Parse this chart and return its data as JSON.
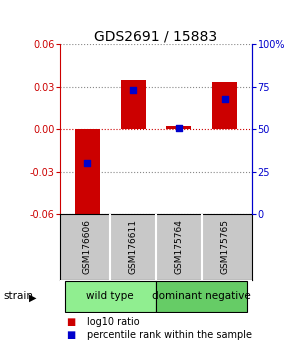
{
  "title": "GDS2691 / 15883",
  "samples": [
    "GSM176606",
    "GSM176611",
    "GSM175764",
    "GSM175765"
  ],
  "log10_ratios": [
    -0.062,
    0.035,
    0.002,
    0.033
  ],
  "percentile_ranks": [
    30,
    73,
    51,
    68
  ],
  "ylim_left": [
    -0.06,
    0.06
  ],
  "ylim_right": [
    0,
    100
  ],
  "yticks_left": [
    -0.06,
    -0.03,
    0,
    0.03,
    0.06
  ],
  "yticks_right": [
    0,
    25,
    50,
    75,
    100
  ],
  "ytick_labels_right": [
    "0",
    "25",
    "50",
    "75",
    "100%"
  ],
  "groups": [
    {
      "label": "wild type",
      "samples": [
        0,
        1
      ],
      "color": "#90EE90"
    },
    {
      "label": "dominant negative",
      "samples": [
        2,
        3
      ],
      "color": "#66CC66"
    }
  ],
  "bar_color": "#CC0000",
  "marker_color": "#0000CC",
  "bar_width": 0.55,
  "marker_size": 18,
  "hline_color": "#CC0000",
  "grid_color": "#888888",
  "background_color": "#ffffff",
  "plot_bg_color": "#ffffff",
  "strain_label": "strain",
  "legend_red_label": "log10 ratio",
  "legend_blue_label": "percentile rank within the sample",
  "left_axis_color": "#CC0000",
  "right_axis_color": "#0000CC",
  "sample_box_color": "#C8C8C8",
  "title_fontsize": 10,
  "tick_fontsize": 7,
  "legend_fontsize": 7,
  "group_fontsize": 7.5,
  "strain_fontsize": 7.5,
  "sample_fontsize": 6.5
}
